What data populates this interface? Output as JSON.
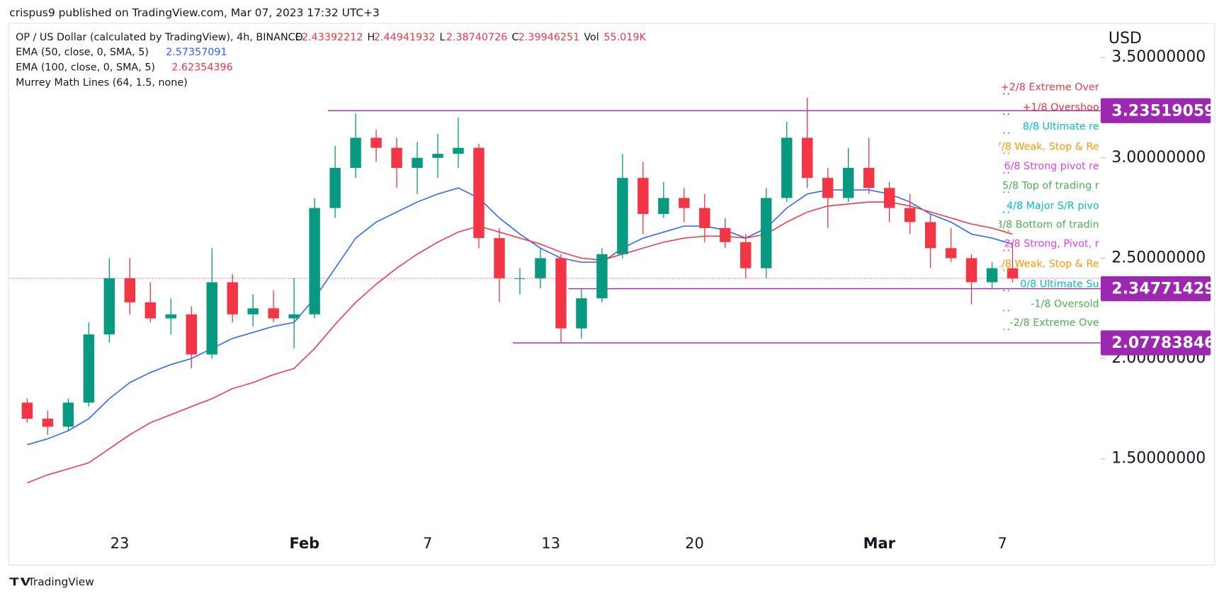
{
  "header": {
    "publisher": "crispus9 published on TradingView.com, Mar 07, 2023 17:32 UTC+3",
    "symbol": "OP / US Dollar (calculated by TradingView), 4h, BINANCE",
    "ohlc": [
      {
        "label": "O",
        "value": 2.43392212
      },
      {
        "label": "H",
        "value": 2.44941932
      },
      {
        "label": "L",
        "value": 2.38740726
      },
      {
        "label": "C",
        "value": 2.39946251
      },
      {
        "label": "Vol",
        "value": "55.019K"
      }
    ],
    "indicator": "Murrey Math Lines (64, 1.5, none)",
    "footer": "TradingView"
  },
  "chart_data": {
    "type": "candlestick",
    "categories": [
      null,
      null,
      null,
      null,
      null,
      "23",
      null,
      null,
      null,
      null,
      null,
      null,
      null,
      null,
      "Feb",
      null,
      null,
      null,
      null,
      null,
      "7",
      null,
      null,
      null,
      null,
      null,
      "13",
      null,
      null,
      null,
      null,
      null,
      null,
      "20",
      null,
      null,
      null,
      null,
      null,
      null,
      null,
      null,
      "Mar",
      null,
      null,
      null,
      null,
      null,
      "7"
    ],
    "open": [
      1.78,
      1.7,
      1.66,
      1.78,
      2.12,
      2.4,
      2.28,
      2.2,
      2.22,
      2.02,
      2.38,
      2.22,
      2.25,
      2.2,
      2.22,
      2.75,
      2.95,
      3.1,
      3.05,
      2.95,
      3.0,
      3.02,
      3.05,
      2.6,
      2.4,
      2.4,
      2.5,
      2.15,
      2.3,
      2.52,
      2.9,
      2.72,
      2.8,
      2.75,
      2.65,
      2.58,
      2.45,
      2.8,
      3.1,
      2.9,
      2.8,
      2.95,
      2.85,
      2.75,
      2.68,
      2.55,
      2.5,
      2.38,
      2.45
    ],
    "high": [
      1.8,
      1.74,
      1.8,
      2.18,
      2.5,
      2.5,
      2.38,
      2.3,
      2.26,
      2.55,
      2.42,
      2.32,
      2.34,
      2.4,
      2.8,
      3.06,
      3.22,
      3.14,
      3.1,
      3.08,
      3.12,
      3.2,
      3.07,
      2.65,
      2.45,
      2.55,
      2.52,
      2.35,
      2.55,
      3.02,
      2.98,
      2.88,
      2.85,
      2.82,
      2.7,
      2.62,
      2.85,
      3.18,
      3.3,
      2.95,
      3.05,
      3.1,
      2.88,
      2.82,
      2.72,
      2.65,
      2.52,
      2.48,
      2.58
    ],
    "low": [
      1.68,
      1.62,
      1.64,
      1.76,
      2.08,
      2.22,
      2.18,
      2.12,
      1.95,
      2.0,
      2.18,
      2.16,
      2.18,
      2.05,
      2.2,
      2.7,
      2.9,
      2.98,
      2.85,
      2.82,
      2.9,
      2.95,
      2.55,
      2.28,
      2.32,
      2.35,
      2.08,
      2.1,
      2.28,
      2.5,
      2.62,
      2.7,
      2.68,
      2.58,
      2.55,
      2.4,
      2.4,
      2.78,
      2.85,
      2.65,
      2.78,
      2.82,
      2.68,
      2.62,
      2.45,
      2.48,
      2.27,
      2.35,
      2.38
    ],
    "close": [
      1.7,
      1.66,
      1.78,
      2.12,
      2.4,
      2.28,
      2.2,
      2.22,
      2.02,
      2.38,
      2.22,
      2.25,
      2.2,
      2.22,
      2.75,
      2.95,
      3.1,
      3.05,
      2.95,
      3.0,
      3.02,
      3.05,
      2.6,
      2.4,
      2.4,
      2.5,
      2.15,
      2.3,
      2.52,
      2.9,
      2.72,
      2.8,
      2.75,
      2.65,
      2.58,
      2.45,
      2.8,
      3.1,
      2.9,
      2.8,
      2.95,
      2.85,
      2.75,
      2.68,
      2.55,
      2.5,
      2.38,
      2.45,
      2.39946251
    ],
    "up_color": "#089981",
    "down_color": "#f23645",
    "series": [
      {
        "name": "EMA (50, close, 0, SMA, 5)",
        "color": "#2962ff",
        "last": 2.57357091,
        "values": [
          1.57,
          1.6,
          1.64,
          1.7,
          1.8,
          1.88,
          1.93,
          1.97,
          2.0,
          2.05,
          2.1,
          2.13,
          2.16,
          2.18,
          2.3,
          2.45,
          2.6,
          2.68,
          2.73,
          2.78,
          2.82,
          2.85,
          2.8,
          2.7,
          2.62,
          2.55,
          2.5,
          2.48,
          2.48,
          2.55,
          2.6,
          2.63,
          2.66,
          2.66,
          2.64,
          2.6,
          2.65,
          2.75,
          2.82,
          2.84,
          2.84,
          2.84,
          2.82,
          2.78,
          2.72,
          2.68,
          2.62,
          2.6,
          2.57
        ]
      },
      {
        "name": "EMA (100, close, 0, SMA, 5)",
        "color": "#f23645",
        "last": 2.62354396,
        "values": [
          1.38,
          1.42,
          1.45,
          1.48,
          1.55,
          1.62,
          1.68,
          1.72,
          1.76,
          1.8,
          1.85,
          1.88,
          1.92,
          1.95,
          2.05,
          2.17,
          2.28,
          2.37,
          2.45,
          2.52,
          2.58,
          2.63,
          2.66,
          2.63,
          2.6,
          2.57,
          2.53,
          2.5,
          2.49,
          2.52,
          2.55,
          2.58,
          2.6,
          2.61,
          2.61,
          2.6,
          2.62,
          2.68,
          2.73,
          2.76,
          2.77,
          2.78,
          2.78,
          2.76,
          2.73,
          2.7,
          2.67,
          2.65,
          2.62
        ]
      }
    ],
    "hlines": [
      {
        "value": 3.23519059,
        "color": "#9c27b0"
      },
      {
        "value": 2.34771429,
        "color": "#9c27b0"
      },
      {
        "value": 2.07783846,
        "color": "#9c27b0"
      }
    ],
    "murrey": [
      {
        "text": "+2/8 Extreme Over",
        "value": 3.35,
        "color": "#f23645"
      },
      {
        "text": "+1/8 Overshoo",
        "value": 3.25,
        "color": "#f23645"
      },
      {
        "text": "8/8 Ultimate re",
        "value": 3.155,
        "color": "#00bcd4"
      },
      {
        "text": "7/8 Weak, Stop & Re",
        "value": 3.054,
        "color": "#ff9800"
      },
      {
        "text": "6/8 Strong pivot re",
        "value": 2.957,
        "color": "#e040fb"
      },
      {
        "text": "5/8 Top of trading r",
        "value": 2.86,
        "color": "#4caf50"
      },
      {
        "text": "4/8 Major S/R pivo",
        "value": 2.76,
        "color": "#00bcd4"
      },
      {
        "text": "3/8 Bottom of tradin",
        "value": 2.666,
        "color": "#4caf50"
      },
      {
        "text": "2/8 Strong, Pivot, r",
        "value": 2.57,
        "color": "#e040fb"
      },
      {
        "text": "1/8 Weak, Stop & Re",
        "value": 2.47,
        "color": "#ff9800"
      },
      {
        "text": "0/8 Ultimate Su",
        "value": 2.37,
        "color": "#00bcd4"
      },
      {
        "text": "-1/8 Oversold",
        "value": 2.27,
        "color": "#4caf50"
      },
      {
        "text": "-2/8 Extreme Ove",
        "value": 2.176,
        "color": "#4caf50"
      }
    ],
    "y_axis_label": "USD",
    "ylim": [
      0.97,
      3.67
    ],
    "yticks": [
      {
        "value": 1.5,
        "label": "1.50000000"
      },
      {
        "value": 2,
        "label": "2.00000000"
      },
      {
        "value": 2.5,
        "label": "2.50000000"
      },
      {
        "value": 3,
        "label": "3.00000000"
      },
      {
        "value": 3.5,
        "label": "3.50000000"
      }
    ]
  }
}
